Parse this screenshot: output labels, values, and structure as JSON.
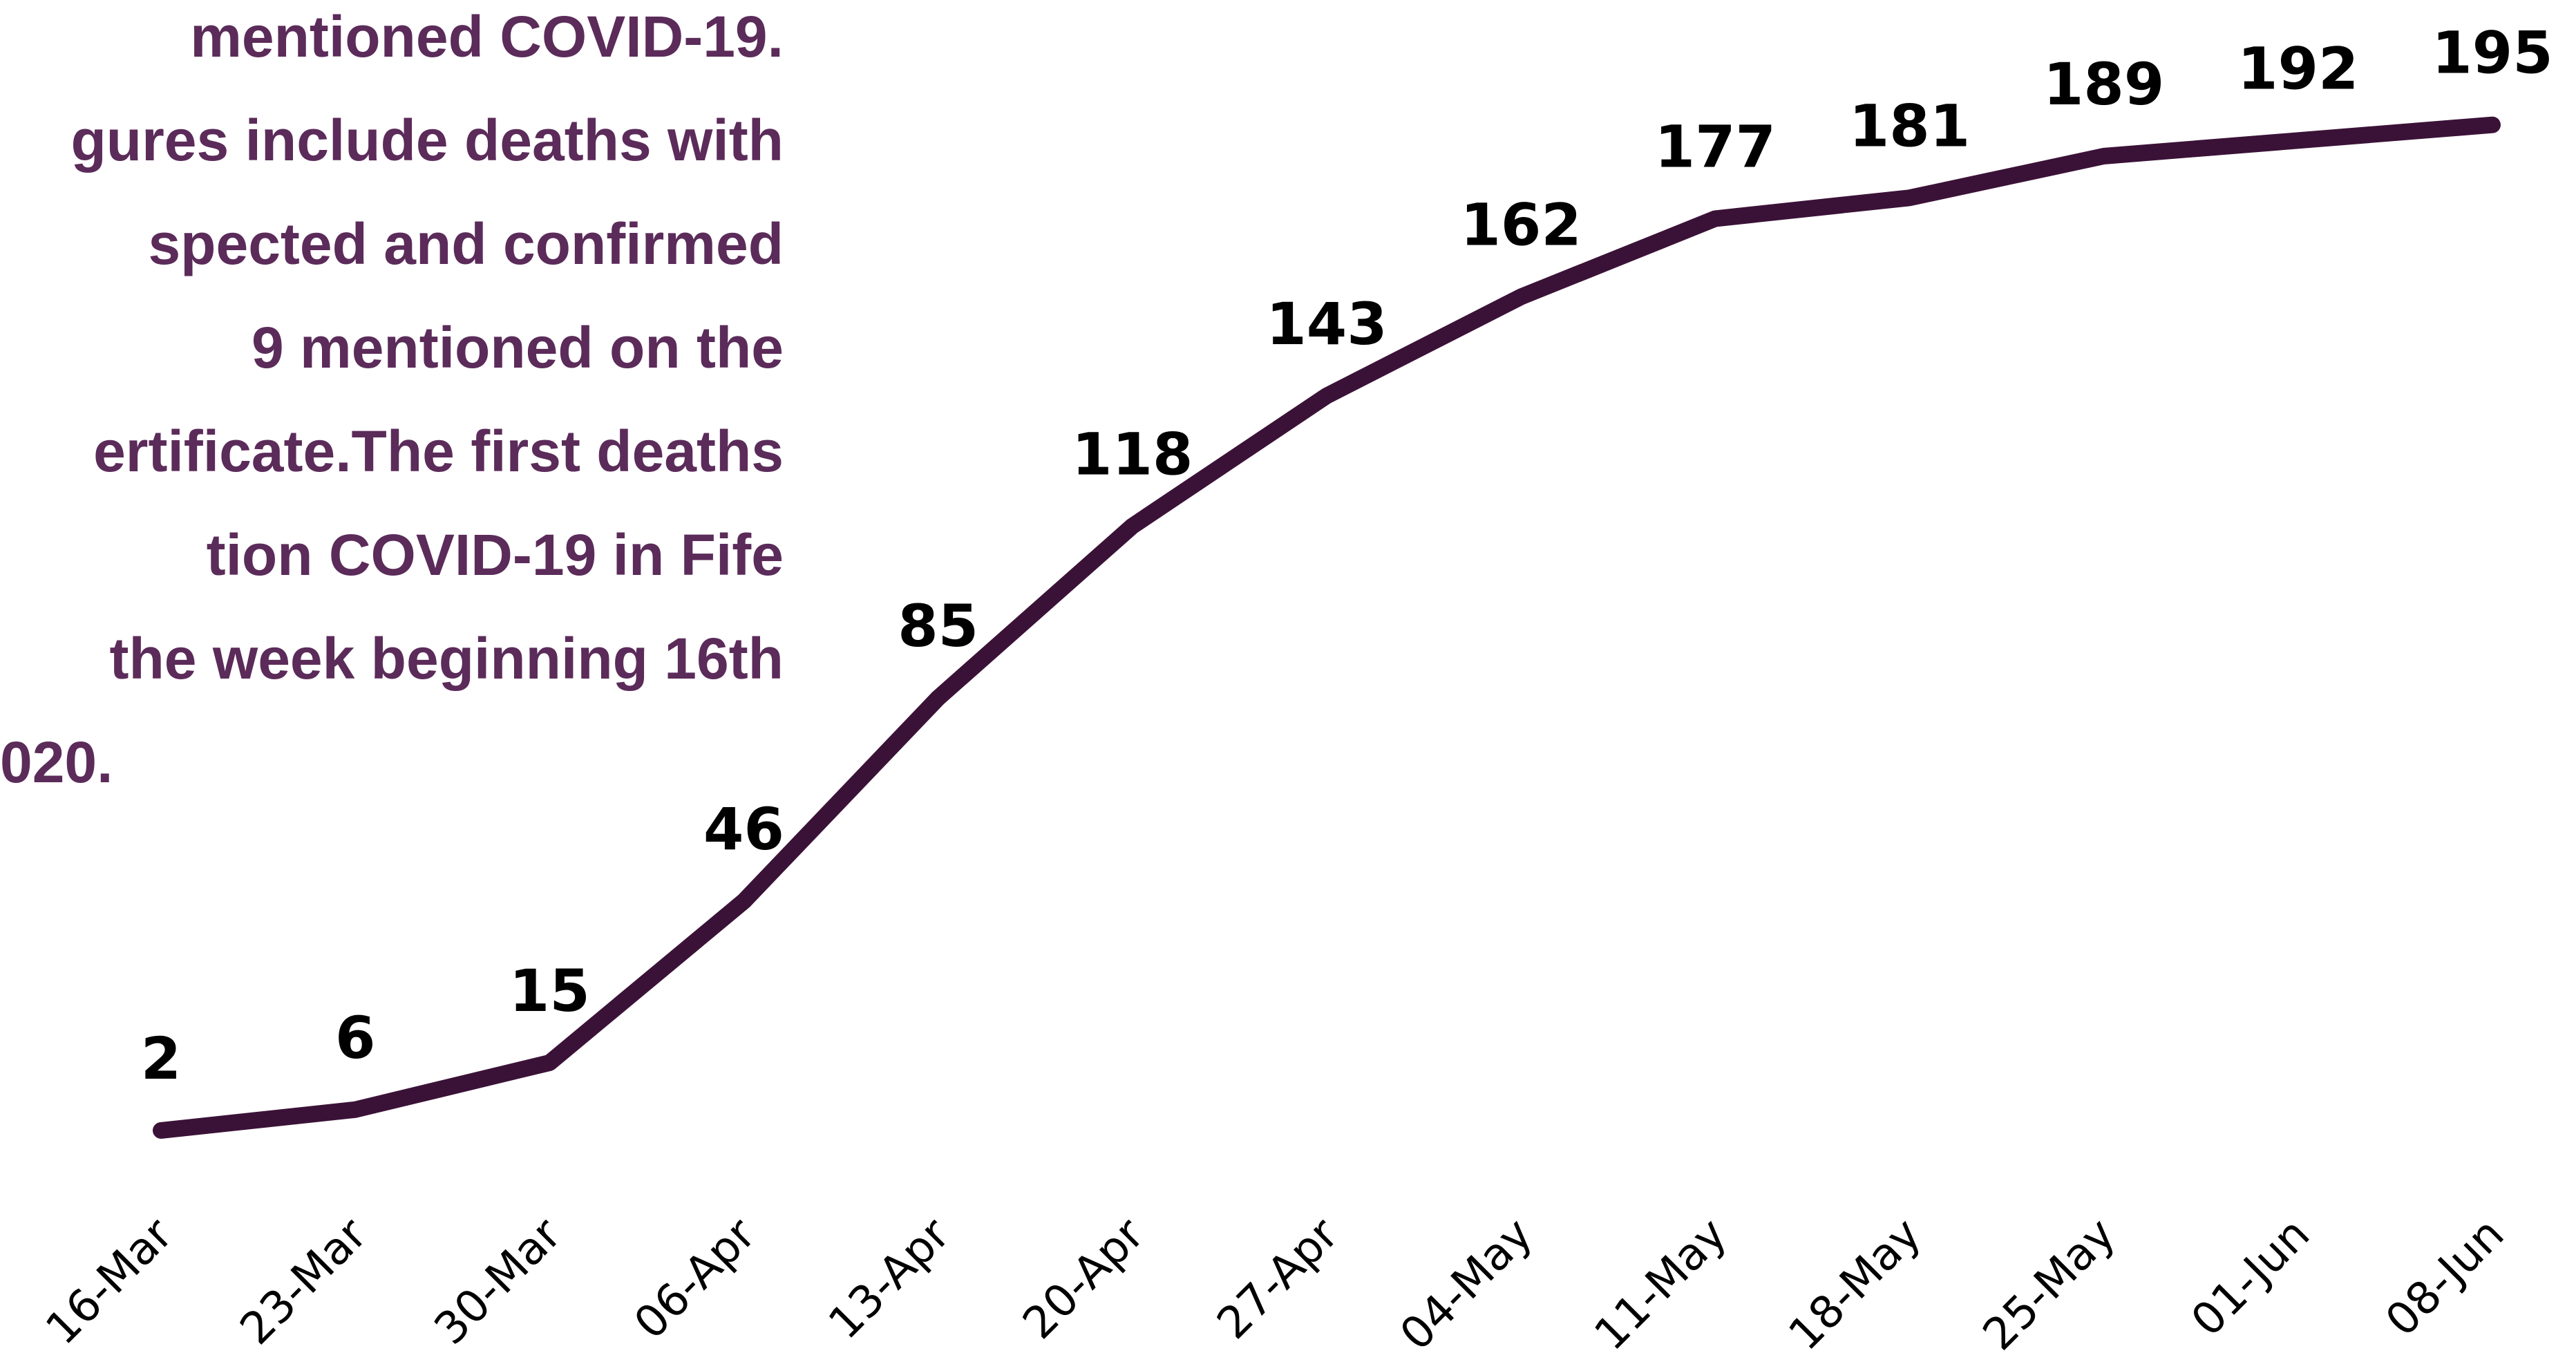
{
  "chart_data": {
    "type": "line",
    "annotation": [
      "mentioned COVID-19.",
      "gures include deaths with",
      "spected and confirmed",
      "9 mentioned on the",
      "ertificate.The first deaths",
      "tion COVID-19 in Fife",
      "the week beginning 16th",
      "020."
    ],
    "categories": [
      "16-Mar",
      "23-Mar",
      "30-Mar",
      "06-Apr",
      "13-Apr",
      "20-Apr",
      "27-Apr",
      "04-May",
      "11-May",
      "18-May",
      "25-May",
      "01-Jun",
      "08-Jun"
    ],
    "values": [
      2,
      6,
      15,
      46,
      85,
      118,
      143,
      162,
      177,
      181,
      189,
      192,
      195
    ],
    "color": "#3b1237",
    "ylim": [
      0,
      200
    ]
  }
}
